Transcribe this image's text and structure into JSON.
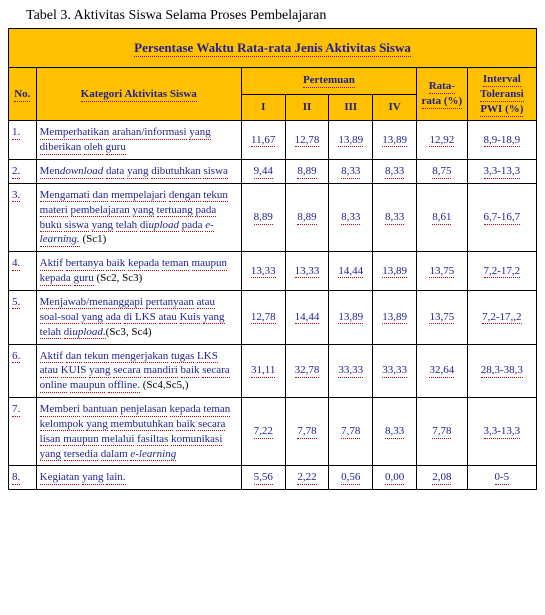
{
  "caption": "Tabel 3. Aktivitas Siswa Selama Proses Pembelajaran",
  "title": "Persentase Waktu Rata-rata Jenis Aktivitas Siswa",
  "headers": {
    "no": "No.",
    "kategori": "Kategori Aktivitas Siswa",
    "pertemuan": "Pertemuan",
    "p1": "I",
    "p2": "II",
    "p3": "III",
    "p4": "IV",
    "rata": "Rata-rata (%)",
    "interval": "Interval Toleransi PWI (%)"
  },
  "rows": [
    {
      "no": "1.",
      "kat_plain": "Memperhatikan arahan/informasi yang diberikan oleh guru",
      "kat_html": "<span class='du'>Memperhatikan</span> <span class='du'>arahan/informasi</span> <span class='du'>yang</span> <span class='du'>diberikan</span> <span class='du'>oleh</span> <span class='du'>guru</span>",
      "v": [
        "11,67",
        "12,78",
        "13,89",
        "13,89"
      ],
      "rata": "12,92",
      "int": "8,9-18,9"
    },
    {
      "no": "2.",
      "kat_plain": "Mendownload data yang dibutuhkan siswa",
      "kat_html": "<span class='du'>Men<span class='em'>download</span></span> <span class='du'>data</span> <span class='du'>yang</span> <span class='du'>dibutuhkan</span> <span class='du'>siswa</span>",
      "v": [
        "9,44",
        "8,89",
        "8,33",
        "8,33"
      ],
      "rata": "8,75",
      "int": "3,3-13,3"
    },
    {
      "no": "3.",
      "kat_plain": "Mengamati dan mempelajari dengan tekun materi pembelajaran yang tertuang pada buku siswa yang telah diupload pada e-learning. (Sc1)",
      "kat_html": "<span class='du'>Mengamati</span> <span class='du'>dan</span> <span class='du'>mempelajari</span> <span class='du'>dengan</span> <span class='du'>tekun</span> <span class='du'>materi</span> <span class='du'>pembelajaran</span> <span class='du'>yang</span> <span class='du'>tertuang</span> <span class='du'>pada</span> <span class='du'>buku</span> <span class='du'>siswa</span> <span class='du'>yang</span> <span class='du'>telah</span> <span class='du'>di<span class='em'>upload</span></span> <span class='du'>pada</span> <span class='du em'>e-learning.</span> (Sc1)",
      "v": [
        "8,89",
        "8,89",
        "8,33",
        "8,33"
      ],
      "rata": "8,61",
      "int": "6,7-16,7"
    },
    {
      "no": "4.",
      "kat_plain": "Aktif bertanya baik kepada teman maupun kepada guru (Sc2, Sc3)",
      "kat_html": "<span class='du'>Aktif</span> <span class='du'>bertanya</span> <span class='du'>baik</span> <span class='du'>kepada</span> <span class='du'>teman</span> <span class='du'>maupun</span> <span class='du'>kepada</span> <span class='du'>guru</span> (Sc2, Sc3)",
      "v": [
        "13,33",
        "13,33",
        "14,44",
        "13,89"
      ],
      "rata": "13,75",
      "int": "7,2-17,2"
    },
    {
      "no": "5.",
      "kat_plain": "Menjawab/menanggapi pertanyaan atau soal-soal yang ada di LKS atau Kuis yang telah diupload.(Sc3, Sc4)",
      "kat_html": "<span class='du'>Menjawab/menanggapi</span> <span class='du'>pertanyaan</span> <span class='du'>atau</span> <span class='du'>soal-soal</span> <span class='du'>yang</span> <span class='du'>ada</span> <span class='du'>di LKS</span> <span class='du'>atau</span> <span class='du'>Kuis</span> <span class='du'>yang</span> <span class='du'>telah</span> <span class='du'>di<span class='em'>upload</span>.</span>(Sc3, Sc4)",
      "v": [
        "12,78",
        "14,44",
        "13,89",
        "13,89"
      ],
      "rata": "13,75",
      "int": "7,2-17,,2"
    },
    {
      "no": "6.",
      "kat_plain": "Aktif dan tekun mengerjakan tugas LKS atau KUIS yang secara mandiri baik secara online maupun offline. (Sc4,Sc5,)",
      "kat_html": "<span class='du'>Aktif</span> <span class='du'>dan</span> <span class='du'>tekun</span>  <span class='du'>mengerjakan</span>  <span class='du'>tugas</span> <span class='du'>LKS</span> <span class='du'>atau</span> <span class='du'>KUIS</span>  <span class='du'>yang</span> <span class='du'>secara</span> <span class='du'>mandiri</span> <span class='du'>baik</span> <span class='du'>secara</span> <span class='du'>online</span> <span class='du'>maupun</span> <span class='du'>offline.</span> (Sc4,Sc5,)",
      "v": [
        "31,11",
        "32,78",
        "33,33",
        "33,33"
      ],
      "rata": "32,64",
      "int": "28,3-38,3"
    },
    {
      "no": "7.",
      "kat_plain": "Memberi bantuan penjelasan kepada teman kelompok yang membutuhkan baik secara lisan maupun melalui fasiltas komunikasi yang tersedia dalam e-learning",
      "kat_html": "<span class='du'>Memberi</span> <span class='du'>bantuan</span> <span class='du'>penjelasan</span> <span class='du'>kepada</span> <span class='du'>teman</span> <span class='du'>kelompok</span> <span class='du'>yang</span> <span class='du'>membutuhkan</span> <span class='du'>baik</span> <span class='du'>secara</span> <span class='du'>lisan</span> <span class='du'>maupun</span> <span class='du'>melalui</span> <span class='du'>fasiltas</span> <span class='du'>komunikasi</span> <span class='du'>yang</span> <span class='du'>tersedia</span> <span class='du'>dalam</span> <span class='du em'>e-learning</span>",
      "v": [
        "7,22",
        "7,78",
        "7,78",
        "8,33"
      ],
      "rata": "7,78",
      "int": "3,3-13,3"
    },
    {
      "no": "8.",
      "kat_plain": "Kegiatan yang lain.",
      "kat_html": "<span class='du'>Kegiatan</span> <span class='du'>yang</span> <span class='du'>lain.</span>",
      "v": [
        "5,56",
        "2,22",
        "0,56",
        "0,00"
      ],
      "rata": "2,08",
      "int": "0-5"
    }
  ],
  "colors": {
    "header_bg": "#ffc000",
    "text_blue": "#1f1f8f",
    "dotted_red": "#c00000",
    "border": "#000000"
  }
}
